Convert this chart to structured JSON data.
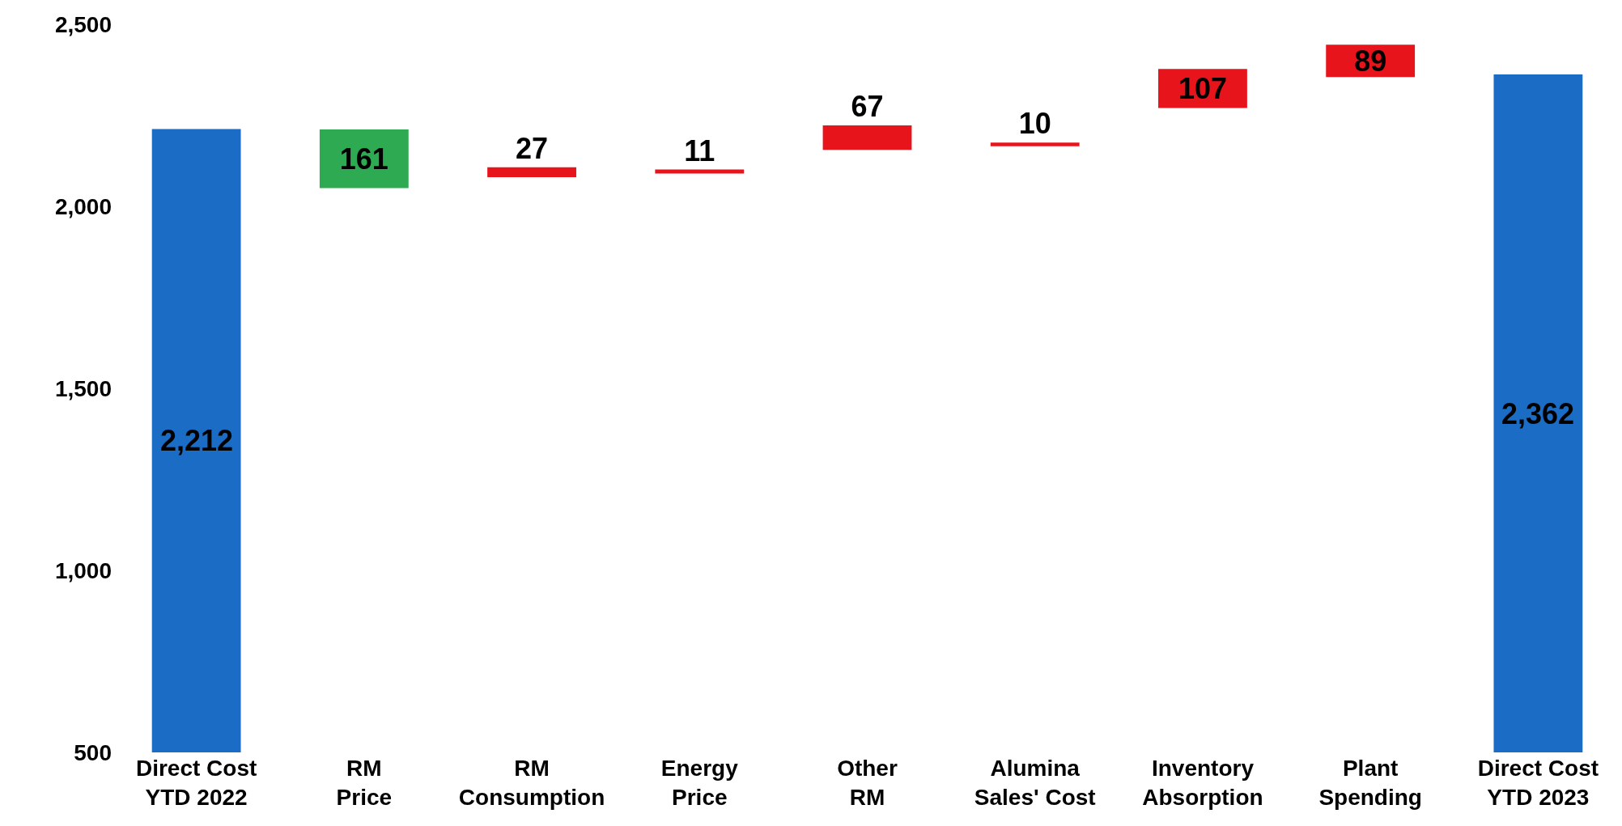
{
  "chart_data": {
    "type": "bar",
    "categories": [
      "Direct Cost\nYTD 2022",
      "RM\nPrice",
      "RM\nConsumption",
      "Energy\nPrice",
      "Other\nRM",
      "Alumina\nSales' Cost",
      "Inventory\nAbsorption",
      "Plant\nSpending",
      "Direct Cost\nYTD 2023"
    ],
    "values": [
      2212,
      161,
      27,
      11,
      67,
      10,
      107,
      89,
      2362
    ],
    "base": [
      null,
      2050,
      2080,
      2090,
      2155,
      2165,
      2270,
      2355,
      null
    ],
    "colors": [
      "#1a6cc4",
      "#2eaa52",
      "#e8141c",
      "#e8141c",
      "#e8141c",
      "#e8141c",
      "#e8141c",
      "#e8141c",
      "#1a6cc4"
    ],
    "value_labels": [
      "2,212",
      "161",
      "27",
      "11",
      "67",
      "10",
      "107",
      "89",
      "2,362"
    ],
    "ylim": [
      500,
      2500
    ],
    "yticks": [
      500,
      {
        "value": 1000,
        "label": "1,000"
      },
      {
        "value": 1500,
        "label": "1,500"
      },
      {
        "value": 2000,
        "label": "2,000"
      },
      {
        "value": 2500,
        "label": "2,500"
      }
    ]
  }
}
